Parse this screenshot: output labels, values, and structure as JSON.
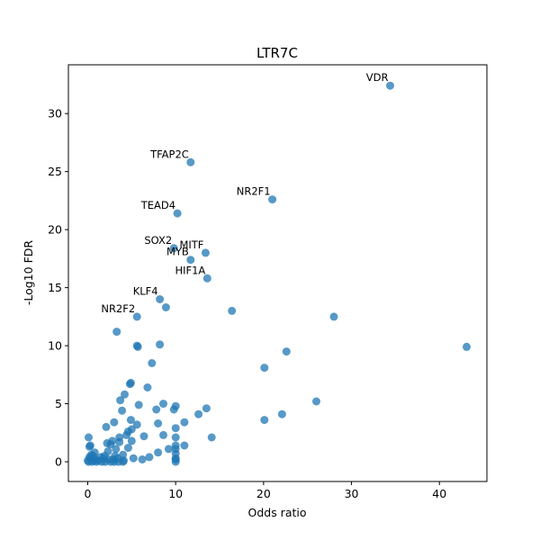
{
  "chart_data": {
    "type": "scatter",
    "title": "LTR7C",
    "xlabel": "Odds ratio",
    "ylabel": "-Log10 FDR",
    "xlim": [
      -2.2,
      45.4
    ],
    "ylim": [
      -1.7,
      34.2
    ],
    "xticks": [
      0,
      10,
      20,
      30,
      40
    ],
    "yticks": [
      0,
      5,
      10,
      15,
      20,
      25,
      30
    ],
    "grid": false,
    "marker_color": "#1f77b4",
    "marker_alpha": 0.75,
    "annotations": [
      {
        "label": "VDR",
        "x": 34.4,
        "y": 32.4
      },
      {
        "label": "TFAP2C",
        "x": 11.7,
        "y": 25.8
      },
      {
        "label": "NR2F1",
        "x": 21.0,
        "y": 22.6
      },
      {
        "label": "TEAD4",
        "x": 10.2,
        "y": 21.4
      },
      {
        "label": "SOX2",
        "x": 9.8,
        "y": 18.4
      },
      {
        "label": "MITF",
        "x": 13.4,
        "y": 18.0
      },
      {
        "label": "MYB",
        "x": 11.7,
        "y": 17.4
      },
      {
        "label": "HIF1A",
        "x": 13.6,
        "y": 15.8
      },
      {
        "label": "KLF4",
        "x": 8.2,
        "y": 14.0
      },
      {
        "label": "NR2F2",
        "x": 5.6,
        "y": 12.5
      }
    ],
    "points": [
      [
        34.4,
        32.4
      ],
      [
        11.7,
        25.8
      ],
      [
        21.0,
        22.6
      ],
      [
        10.2,
        21.4
      ],
      [
        9.8,
        18.4
      ],
      [
        13.4,
        18.0
      ],
      [
        11.7,
        17.4
      ],
      [
        13.6,
        15.8
      ],
      [
        8.2,
        14.0
      ],
      [
        8.9,
        13.3
      ],
      [
        16.4,
        13.0
      ],
      [
        5.6,
        12.5
      ],
      [
        28.0,
        12.5
      ],
      [
        3.3,
        11.2
      ],
      [
        5.7,
        9.9
      ],
      [
        5.6,
        10.0
      ],
      [
        8.2,
        10.1
      ],
      [
        43.1,
        9.9
      ],
      [
        22.6,
        9.5
      ],
      [
        7.3,
        8.5
      ],
      [
        20.1,
        8.1
      ],
      [
        4.8,
        6.7
      ],
      [
        4.9,
        6.8
      ],
      [
        6.8,
        6.4
      ],
      [
        4.2,
        5.8
      ],
      [
        3.7,
        5.3
      ],
      [
        26.0,
        5.2
      ],
      [
        8.6,
        5.0
      ],
      [
        5.8,
        4.9
      ],
      [
        10.0,
        4.8
      ],
      [
        13.5,
        4.6
      ],
      [
        9.8,
        4.5
      ],
      [
        7.8,
        4.5
      ],
      [
        3.9,
        4.4
      ],
      [
        12.6,
        4.1
      ],
      [
        22.1,
        4.1
      ],
      [
        20.1,
        3.6
      ],
      [
        4.9,
        3.6
      ],
      [
        5.6,
        3.2
      ],
      [
        8.0,
        3.3
      ],
      [
        11.0,
        3.4
      ],
      [
        3.0,
        3.4
      ],
      [
        2.1,
        3.0
      ],
      [
        10.0,
        2.9
      ],
      [
        5.0,
        2.8
      ],
      [
        4.6,
        2.6
      ],
      [
        4.4,
        2.3
      ],
      [
        6.4,
        2.2
      ],
      [
        8.6,
        2.3
      ],
      [
        10.0,
        2.1
      ],
      [
        14.1,
        2.1
      ],
      [
        3.6,
        2.1
      ],
      [
        2.8,
        1.8
      ],
      [
        0.1,
        2.1
      ],
      [
        2.2,
        1.6
      ],
      [
        5.0,
        1.8
      ],
      [
        3.6,
        1.7
      ],
      [
        2.6,
        1.5
      ],
      [
        4.6,
        1.2
      ],
      [
        11.0,
        1.4
      ],
      [
        10.0,
        1.4
      ],
      [
        10.0,
        1.1
      ],
      [
        9.2,
        1.1
      ],
      [
        3.2,
        1.1
      ],
      [
        0.3,
        1.4
      ],
      [
        0.2,
        1.3
      ],
      [
        8.0,
        0.8
      ],
      [
        0.8,
        0.8
      ],
      [
        10.0,
        0.7
      ],
      [
        2.3,
        0.9
      ],
      [
        4.0,
        0.6
      ],
      [
        3.1,
        0.5
      ],
      [
        0.6,
        0.5
      ],
      [
        0.4,
        0.6
      ],
      [
        1.9,
        0.5
      ],
      [
        7.0,
        0.4
      ],
      [
        5.2,
        0.3
      ],
      [
        2.9,
        0.2
      ],
      [
        0.0,
        0.1
      ],
      [
        0.3,
        0.3
      ],
      [
        0.9,
        0.2
      ],
      [
        1.2,
        0.1
      ],
      [
        3.4,
        0.3
      ],
      [
        6.2,
        0.2
      ],
      [
        1.5,
        0.4
      ],
      [
        2.4,
        0.2
      ],
      [
        0.1,
        0.0
      ],
      [
        0.5,
        0.0
      ],
      [
        1.0,
        0.0
      ],
      [
        1.6,
        0.0
      ],
      [
        2.0,
        0.0
      ],
      [
        2.6,
        0.0
      ],
      [
        3.0,
        0.0
      ],
      [
        3.5,
        0.0
      ],
      [
        4.0,
        0.0
      ],
      [
        10.0,
        0.0
      ],
      [
        10.0,
        0.3
      ],
      [
        10.0,
        0.2
      ],
      [
        0.2,
        0.4
      ],
      [
        0.7,
        0.1
      ],
      [
        1.8,
        0.3
      ],
      [
        4.1,
        0.1
      ]
    ]
  }
}
